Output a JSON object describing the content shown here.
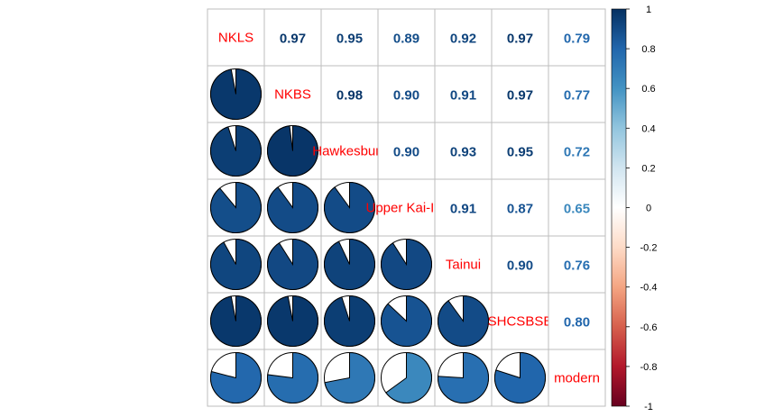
{
  "chart_data": {
    "type": "heatmap",
    "title": "",
    "variables": [
      "NKLS",
      "NKBS",
      "Hawkesbury",
      "Upper Kai-Iwi",
      "Tainui",
      "SHCSBSB",
      "modern"
    ],
    "matrix": [
      [
        1.0,
        0.97,
        0.95,
        0.89,
        0.92,
        0.97,
        0.79
      ],
      [
        0.97,
        1.0,
        0.98,
        0.9,
        0.91,
        0.97,
        0.77
      ],
      [
        0.95,
        0.98,
        1.0,
        0.9,
        0.93,
        0.95,
        0.72
      ],
      [
        0.89,
        0.9,
        0.9,
        1.0,
        0.91,
        0.87,
        0.65
      ],
      [
        0.92,
        0.91,
        0.93,
        0.91,
        1.0,
        0.9,
        0.76
      ],
      [
        0.97,
        0.97,
        0.95,
        0.87,
        0.9,
        1.0,
        0.8
      ],
      [
        0.79,
        0.77,
        0.72,
        0.65,
        0.76,
        0.8,
        1.0
      ]
    ],
    "upper_labels": [
      [
        "",
        "0.97",
        "0.95",
        "0.89",
        "0.92",
        "0.97",
        "0.79"
      ],
      [
        "",
        "",
        "0.98",
        "0.90",
        "0.91",
        "0.97",
        "0.77"
      ],
      [
        "",
        "",
        "",
        "0.90",
        "0.93",
        "0.95",
        "0.72"
      ],
      [
        "",
        "",
        "",
        "",
        "0.91",
        "0.87",
        "0.65"
      ],
      [
        "",
        "",
        "",
        "",
        "",
        "0.90",
        "0.76"
      ],
      [
        "",
        "",
        "",
        "",
        "",
        "",
        "0.80"
      ],
      [
        "",
        "",
        "",
        "",
        "",
        "",
        ""
      ]
    ],
    "lower_method": "pie",
    "upper_method": "number",
    "diagonal_label_color": "#FF0000",
    "colorbar": {
      "ticks": [
        "1",
        "0.8",
        "0.6",
        "0.4",
        "0.2",
        "0",
        "-0.2",
        "-0.4",
        "-0.6",
        "-0.8",
        "-1"
      ],
      "range": [
        -1,
        1
      ],
      "colors": [
        "#67001F",
        "#B2182B",
        "#D6604D",
        "#F4A582",
        "#FDDBC7",
        "#FFFFFF",
        "#D1E5F0",
        "#92C5DE",
        "#4393C3",
        "#2166AC",
        "#053061"
      ]
    },
    "grid": true,
    "legend": "right"
  }
}
